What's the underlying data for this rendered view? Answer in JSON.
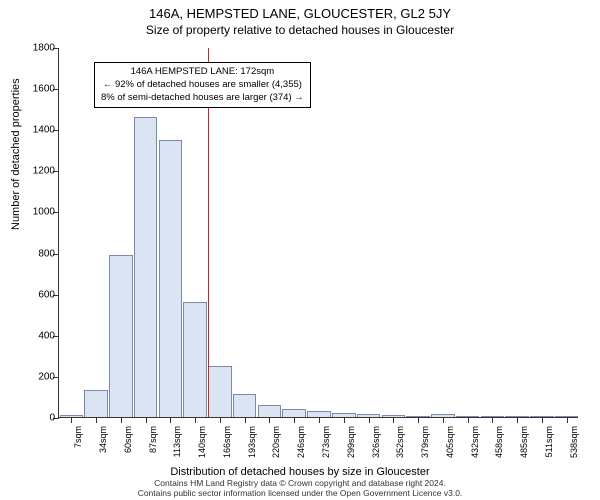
{
  "chart": {
    "type": "histogram",
    "title": "146A, HEMPSTED LANE, GLOUCESTER, GL2 5JY",
    "subtitle": "Size of property relative to detached houses in Gloucester",
    "ylabel": "Number of detached properties",
    "xlabel": "Distribution of detached houses by size in Gloucester",
    "background_color": "#ffffff",
    "bar_fill": "#dbe4f2",
    "bar_stroke": "#7a8aa8",
    "ref_line_color": "#e02020",
    "axis_color": "#333333",
    "text_color": "#000000",
    "title_fontsize": 13,
    "subtitle_fontsize": 12,
    "label_fontsize": 11,
    "tick_fontsize": 10,
    "ylim": [
      0,
      1800
    ],
    "ytick_step": 200,
    "yticks": [
      0,
      200,
      400,
      600,
      800,
      1000,
      1200,
      1400,
      1600,
      1800
    ],
    "x_categories": [
      "7sqm",
      "34sqm",
      "60sqm",
      "87sqm",
      "113sqm",
      "140sqm",
      "166sqm",
      "193sqm",
      "220sqm",
      "246sqm",
      "273sqm",
      "299sqm",
      "326sqm",
      "352sqm",
      "379sqm",
      "405sqm",
      "432sqm",
      "458sqm",
      "485sqm",
      "511sqm",
      "538sqm"
    ],
    "bar_values": [
      10,
      130,
      790,
      1460,
      1350,
      560,
      250,
      110,
      60,
      40,
      30,
      20,
      15,
      8,
      5,
      15,
      0,
      0,
      0,
      0,
      0
    ],
    "ref_line_index": 6,
    "bar_width": 0.95,
    "annotation": {
      "line1": "146A HEMPSTED LANE: 172sqm",
      "line2": "← 92% of detached houses are smaller (4,355)",
      "line3": "8% of semi-detached houses are larger (374) →"
    },
    "footer": {
      "line1": "Contains HM Land Registry data © Crown copyright and database right 2024.",
      "line2": "Contains public sector information licensed under the Open Government Licence v3.0."
    }
  }
}
